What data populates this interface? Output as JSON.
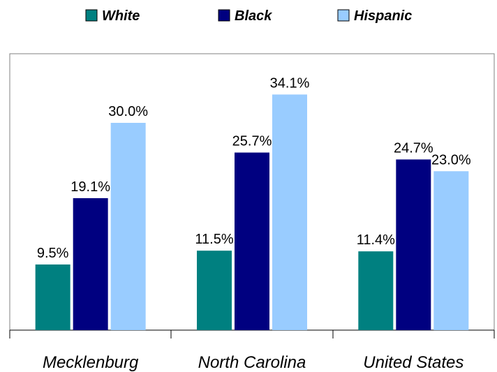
{
  "chart_data": {
    "type": "bar",
    "categories": [
      "Mecklenburg",
      "North Carolina",
      "United States"
    ],
    "series": [
      {
        "name": "White",
        "color": "#008080",
        "values": [
          9.5,
          11.5,
          11.4
        ],
        "value_labels": [
          "9.5%",
          "11.5%",
          "11.4%"
        ]
      },
      {
        "name": "Black",
        "color": "#000080",
        "values": [
          19.1,
          25.7,
          24.7
        ],
        "value_labels": [
          "19.1%",
          "25.7%",
          "24.7%"
        ]
      },
      {
        "name": "Hispanic",
        "color": "#99ccff",
        "values": [
          30.0,
          34.1,
          23.0
        ],
        "value_labels": [
          "30.0%",
          "34.1%",
          "23.0%"
        ]
      }
    ],
    "ylim": [
      0,
      40
    ],
    "legend": "top"
  }
}
